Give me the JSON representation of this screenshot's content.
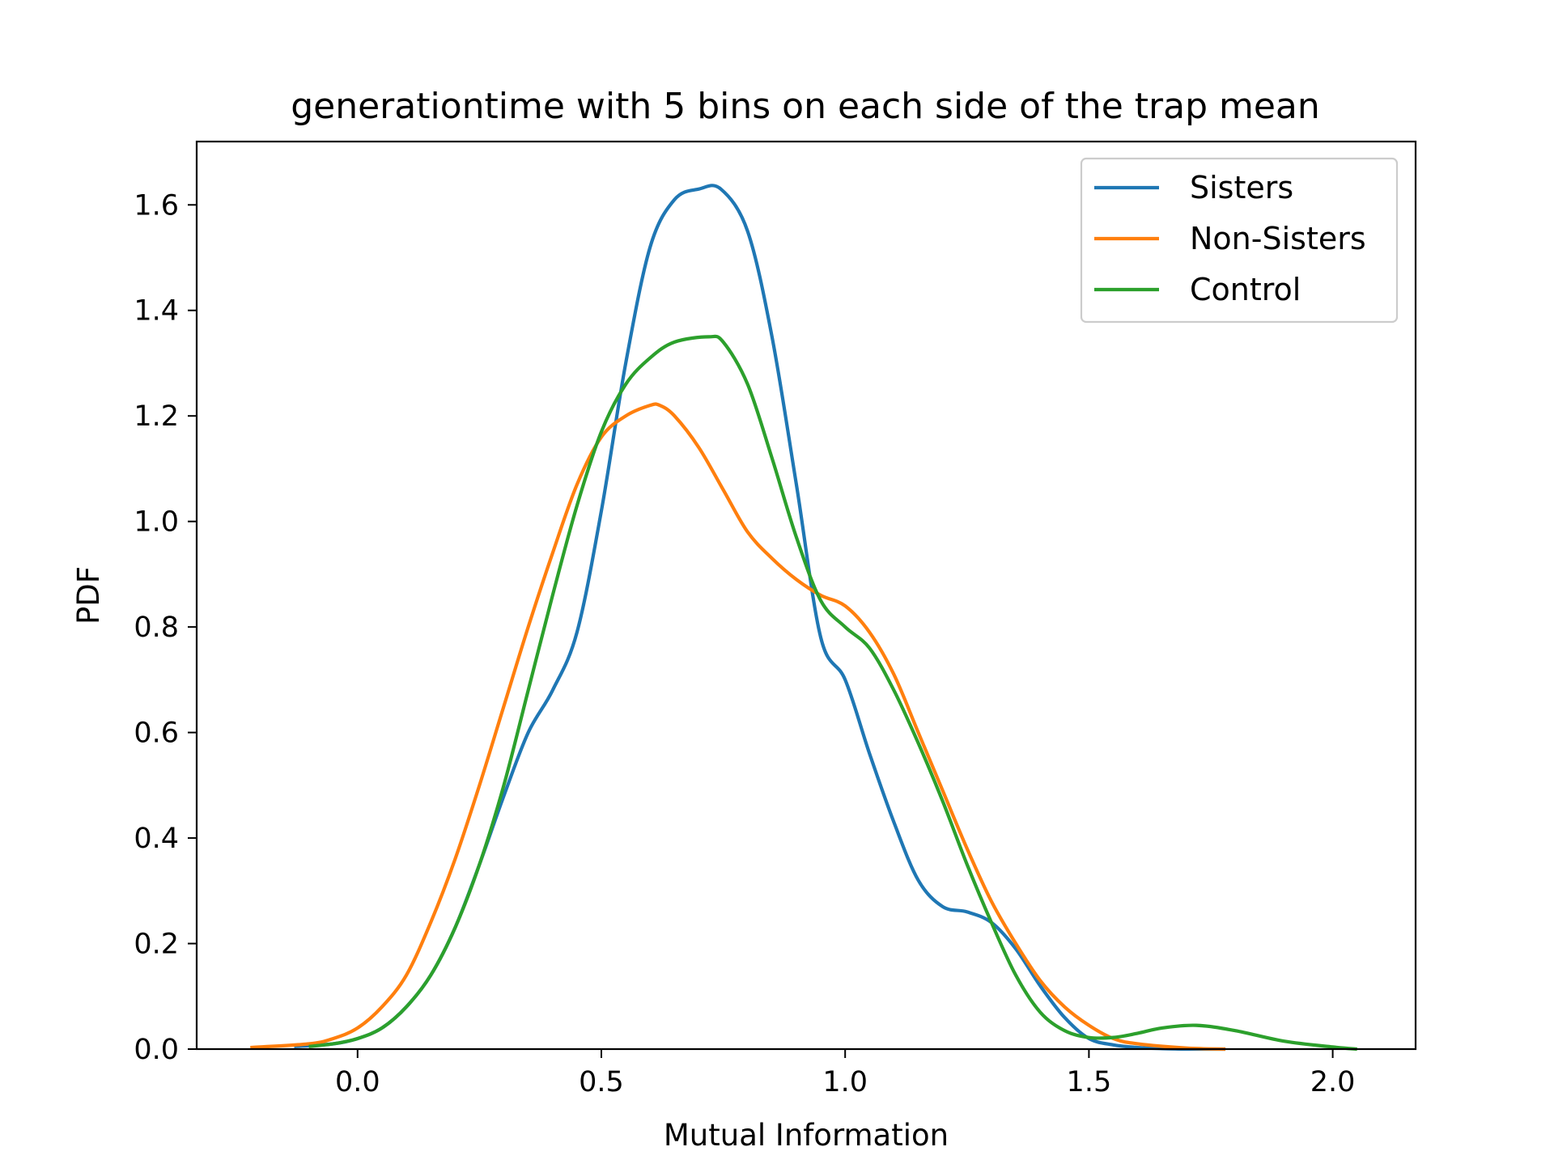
{
  "chart_data": {
    "type": "line",
    "title": "generationtime with 5 bins on each side of the trap mean",
    "xlabel": "Mutual Information",
    "ylabel": "PDF",
    "xlim": [
      -0.33,
      2.17
    ],
    "ylim": [
      0.0,
      1.72
    ],
    "xticks": [
      0.0,
      0.5,
      1.0,
      1.5,
      2.0
    ],
    "xtick_labels": [
      "0.0",
      "0.5",
      "1.0",
      "1.5",
      "2.0"
    ],
    "yticks": [
      0.0,
      0.2,
      0.4,
      0.6,
      0.8,
      1.0,
      1.2,
      1.4,
      1.6
    ],
    "ytick_labels": [
      "0.0",
      "0.2",
      "0.4",
      "0.6",
      "0.8",
      "1.0",
      "1.2",
      "1.4",
      "1.6"
    ],
    "grid": false,
    "legend_position": "top-right",
    "series": [
      {
        "name": "Sisters",
        "color": "#1f77b4",
        "x": [
          -0.13,
          -0.05,
          0.0,
          0.05,
          0.1,
          0.15,
          0.2,
          0.25,
          0.3,
          0.35,
          0.4,
          0.45,
          0.5,
          0.55,
          0.6,
          0.65,
          0.7,
          0.745,
          0.8,
          0.85,
          0.9,
          0.95,
          1.0,
          1.05,
          1.1,
          1.15,
          1.2,
          1.25,
          1.3,
          1.35,
          1.4,
          1.45,
          1.5,
          1.55,
          1.6,
          1.65,
          1.7,
          1.78
        ],
        "y": [
          0.005,
          0.01,
          0.02,
          0.04,
          0.08,
          0.14,
          0.23,
          0.35,
          0.48,
          0.6,
          0.68,
          0.79,
          1.02,
          1.3,
          1.52,
          1.61,
          1.63,
          1.63,
          1.55,
          1.35,
          1.07,
          0.78,
          0.7,
          0.56,
          0.43,
          0.32,
          0.27,
          0.26,
          0.24,
          0.19,
          0.12,
          0.06,
          0.02,
          0.008,
          0.003,
          0.001,
          0.0,
          0.0
        ]
      },
      {
        "name": "Non-Sisters",
        "color": "#ff7f0e",
        "x": [
          -0.22,
          -0.1,
          -0.05,
          0.0,
          0.05,
          0.1,
          0.15,
          0.2,
          0.25,
          0.3,
          0.35,
          0.4,
          0.45,
          0.5,
          0.55,
          0.6,
          0.62,
          0.65,
          0.7,
          0.75,
          0.8,
          0.85,
          0.9,
          0.95,
          1.0,
          1.05,
          1.1,
          1.15,
          1.2,
          1.25,
          1.3,
          1.35,
          1.4,
          1.45,
          1.5,
          1.55,
          1.6,
          1.7,
          1.78
        ],
        "y": [
          0.003,
          0.01,
          0.02,
          0.04,
          0.08,
          0.14,
          0.24,
          0.36,
          0.5,
          0.65,
          0.8,
          0.94,
          1.07,
          1.16,
          1.2,
          1.22,
          1.22,
          1.2,
          1.14,
          1.06,
          0.98,
          0.93,
          0.89,
          0.86,
          0.84,
          0.79,
          0.71,
          0.6,
          0.49,
          0.38,
          0.28,
          0.2,
          0.13,
          0.08,
          0.045,
          0.02,
          0.01,
          0.002,
          0.0
        ]
      },
      {
        "name": "Control",
        "color": "#2ca02c",
        "x": [
          -0.1,
          -0.05,
          0.0,
          0.05,
          0.1,
          0.15,
          0.2,
          0.25,
          0.3,
          0.35,
          0.4,
          0.45,
          0.5,
          0.55,
          0.6,
          0.65,
          0.72,
          0.75,
          0.8,
          0.85,
          0.9,
          0.95,
          1.0,
          1.05,
          1.1,
          1.15,
          1.2,
          1.25,
          1.3,
          1.35,
          1.4,
          1.45,
          1.5,
          1.55,
          1.6,
          1.65,
          1.72,
          1.8,
          1.9,
          2.0,
          2.05
        ],
        "y": [
          0.005,
          0.01,
          0.02,
          0.04,
          0.08,
          0.14,
          0.23,
          0.35,
          0.5,
          0.68,
          0.86,
          1.03,
          1.17,
          1.26,
          1.31,
          1.34,
          1.35,
          1.34,
          1.26,
          1.12,
          0.97,
          0.85,
          0.8,
          0.76,
          0.68,
          0.58,
          0.47,
          0.35,
          0.24,
          0.14,
          0.07,
          0.035,
          0.022,
          0.022,
          0.03,
          0.04,
          0.045,
          0.035,
          0.015,
          0.004,
          0.0
        ]
      }
    ]
  }
}
